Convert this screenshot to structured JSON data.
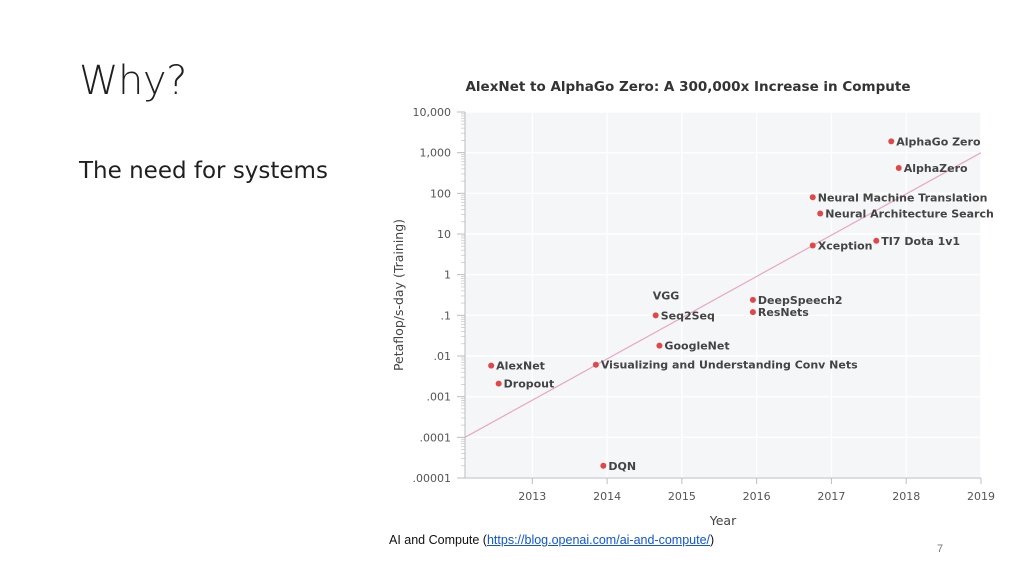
{
  "slide": {
    "title": "Why?",
    "subtitle": "The need for systems",
    "caption_prefix": "AI and Compute (",
    "caption_link": "https://blog.openai.com/ai-and-compute/",
    "caption_suffix": ")",
    "page_number": "7"
  },
  "chart_data": {
    "type": "scatter",
    "title": "AlexNet to AlphaGo Zero: A 300,000x Increase in Compute",
    "xlabel": "Year",
    "ylabel": "Petaflop/s-day (Training)",
    "xlim": [
      2012.1,
      2019
    ],
    "ylim": [
      1e-05,
      10000
    ],
    "yscale": "log",
    "x_ticks": [
      2013,
      2014,
      2015,
      2016,
      2017,
      2018,
      2019
    ],
    "x_tick_labels": [
      "2013",
      "2014",
      "2015",
      "2016",
      "2017",
      "2018",
      "2019"
    ],
    "y_ticks": [
      1e-05,
      0.0001,
      0.001,
      0.01,
      0.1,
      1,
      10,
      100,
      1000,
      10000
    ],
    "y_tick_labels": [
      ".00001",
      ".0001",
      ".001",
      ".01",
      ".1",
      "1",
      "10",
      "100",
      "1,000",
      "10,000"
    ],
    "grid": true,
    "point_color": "#e04848",
    "trend_color": "#e8a6c6",
    "trend": {
      "x": [
        2012.1,
        2019
      ],
      "y": [
        0.0001,
        1000
      ]
    },
    "points": [
      {
        "label": "AlexNet",
        "x": 2012.45,
        "y": 0.0058
      },
      {
        "label": "Dropout",
        "x": 2012.55,
        "y": 0.0021
      },
      {
        "label": "DQN",
        "x": 2013.95,
        "y": 2e-05
      },
      {
        "label": "Visualizing and Understanding Conv Nets",
        "x": 2013.85,
        "y": 0.0061
      },
      {
        "label": "GoogleNet",
        "x": 2014.7,
        "y": 0.018
      },
      {
        "label": "VGG",
        "x": 2014.65,
        "y": 0.1,
        "label_above": true
      },
      {
        "label": "Seq2Seq",
        "x": 2014.65,
        "y": 0.1
      },
      {
        "label": "DeepSpeech2",
        "x": 2015.95,
        "y": 0.24
      },
      {
        "label": "ResNets",
        "x": 2015.95,
        "y": 0.12
      },
      {
        "label": "Xception",
        "x": 2016.75,
        "y": 5.2
      },
      {
        "label": "TI7 Dota 1v1",
        "x": 2017.6,
        "y": 6.8
      },
      {
        "label": "Neural Machine Translation",
        "x": 2016.75,
        "y": 80
      },
      {
        "label": "Neural Architecture Search",
        "x": 2016.85,
        "y": 32
      },
      {
        "label": "AlphaZero",
        "x": 2017.9,
        "y": 420
      },
      {
        "label": "AlphaGo Zero",
        "x": 2017.8,
        "y": 1900
      }
    ]
  }
}
